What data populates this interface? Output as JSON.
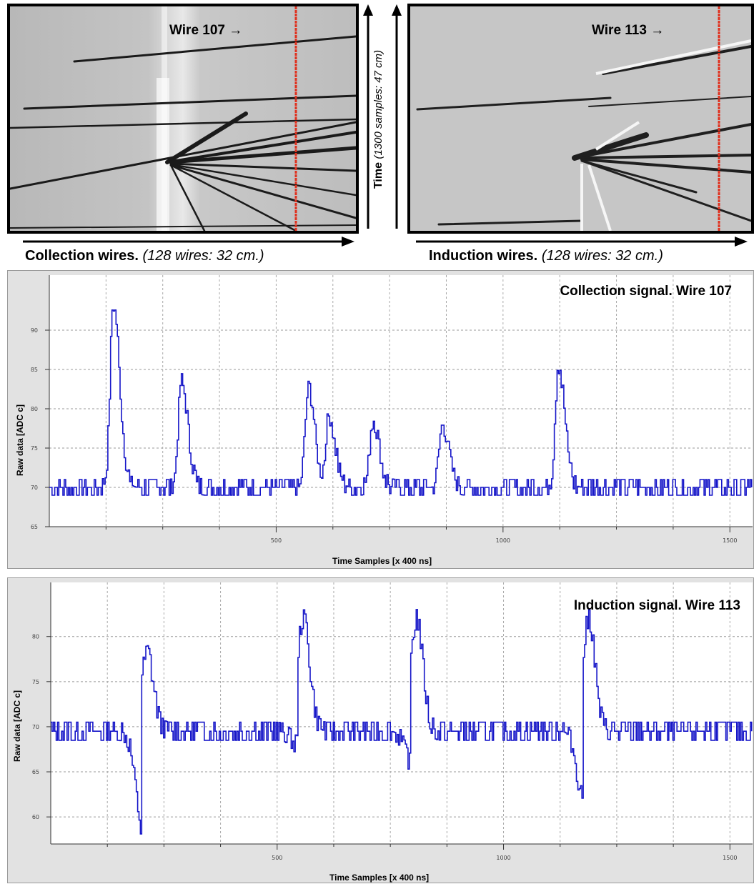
{
  "event_display": {
    "collection_view": {
      "wire_marker": "Wire 107 →",
      "axis_caption": "Collection wires.",
      "axis_note": "(128 wires: 32 cm.)"
    },
    "induction_view": {
      "wire_marker": "Wire 113 →",
      "axis_caption": "Induction wires.",
      "axis_note": "(128 wires: 32 cm.)"
    },
    "time_axis": {
      "label": "Time",
      "note": "(1300 samples: 47 cm)"
    },
    "marker_color": "#e0301e"
  },
  "chart_data": [
    {
      "type": "line",
      "title": "Collection signal.  Wire 107",
      "xlabel": "Time Samples [x 400 ns]",
      "ylabel": "Raw data [ADC c]",
      "xlim": [
        0,
        1550
      ],
      "ylim": [
        65,
        97
      ],
      "x_ticks": [
        500,
        1000,
        1500
      ],
      "y_ticks": [
        65,
        70,
        75,
        80,
        85,
        90
      ],
      "grid": true,
      "color": "#1515c8",
      "baseline": 70,
      "noise": 1.4,
      "peaks": [
        {
          "x": 140,
          "y": 93.5,
          "width": 14
        },
        {
          "x": 290,
          "y": 83.5,
          "width": 14
        },
        {
          "x": 570,
          "y": 82.5,
          "width": 14
        },
        {
          "x": 615,
          "y": 79,
          "width": 14
        },
        {
          "x": 712,
          "y": 78.5,
          "width": 14
        },
        {
          "x": 865,
          "y": 78,
          "width": 14
        },
        {
          "x": 1121,
          "y": 85.5,
          "width": 14
        }
      ]
    },
    {
      "type": "line",
      "title": "Induction signal.  Wire 113",
      "xlabel": "Time Samples [x 400 ns]",
      "ylabel": "Raw data [ADC c]",
      "xlim": [
        0,
        1550
      ],
      "ylim": [
        57,
        86
      ],
      "x_ticks": [
        500,
        1000,
        1500
      ],
      "y_ticks": [
        60,
        65,
        70,
        75,
        80
      ],
      "grid": true,
      "color": "#1515c8",
      "baseline": 69.5,
      "noise": 1.5,
      "bipolar_pulses": [
        {
          "x": 200,
          "min": 59,
          "max": 78
        },
        {
          "x": 545,
          "min": 68,
          "max": 82
        },
        {
          "x": 795,
          "min": 66,
          "max": 82
        },
        {
          "x": 1175,
          "min": 62,
          "max": 82
        }
      ]
    }
  ]
}
